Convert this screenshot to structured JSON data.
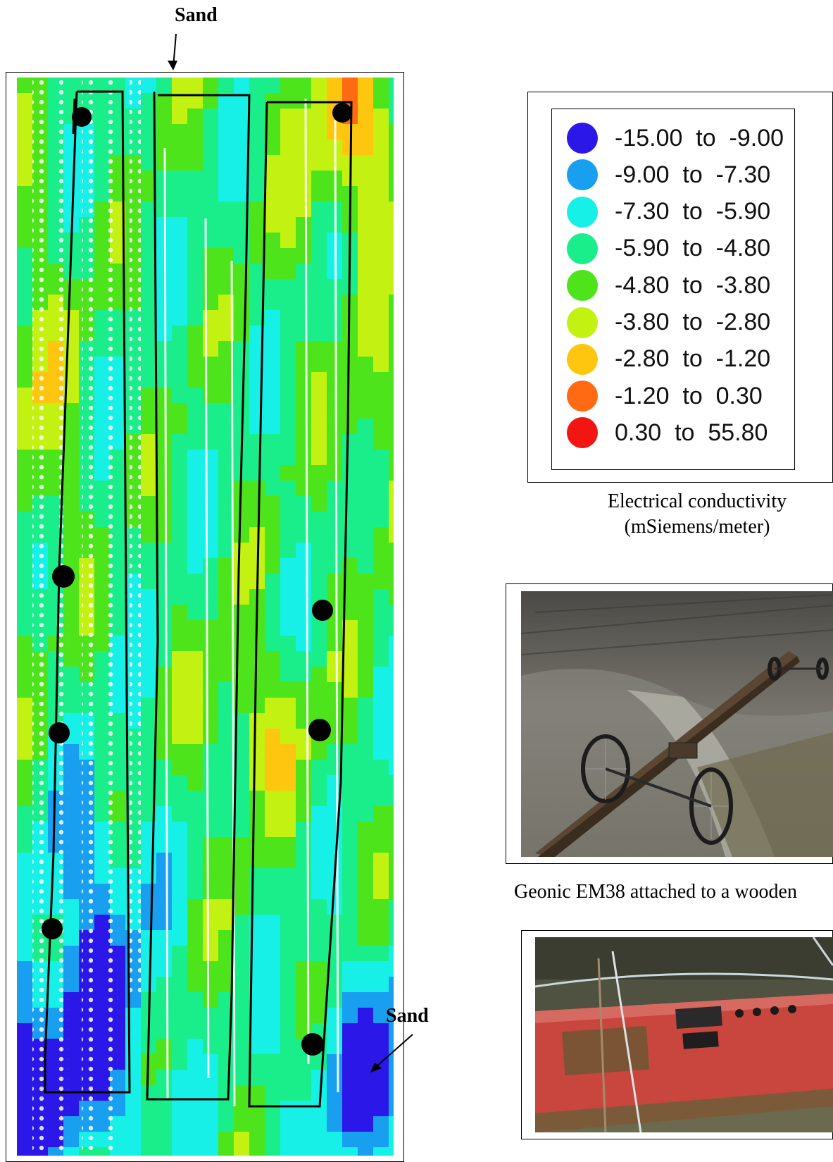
{
  "annotations": {
    "sand_top": "Sand",
    "sand_bottom": "Sand"
  },
  "legend": {
    "items": [
      {
        "label": "-15.00  to  -9.00",
        "color": "#2a17e8"
      },
      {
        "label": "-9.00  to  -7.30",
        "color": "#189ff0"
      },
      {
        "label": "-7.30  to  -5.90",
        "color": "#17f0e6"
      },
      {
        "label": "-5.90  to  -4.80",
        "color": "#19ee8a"
      },
      {
        "label": "-4.80  to  -3.80",
        "color": "#4ee41c"
      },
      {
        "label": "-3.80  to  -2.80",
        "color": "#c3f212"
      },
      {
        "label": "-2.80  to  -1.20",
        "color": "#fec60f"
      },
      {
        "label": "-1.20  to  0.30",
        "color": "#ff6a12"
      },
      {
        "label": "0.30  to  55.80",
        "color": "#f21512"
      }
    ],
    "caption_line1": "Electrical conductivity",
    "caption_line2": "(mSiemens/meter)"
  },
  "photos": {
    "caption_1": "Geonic EM38 attached to a wooden"
  }
}
